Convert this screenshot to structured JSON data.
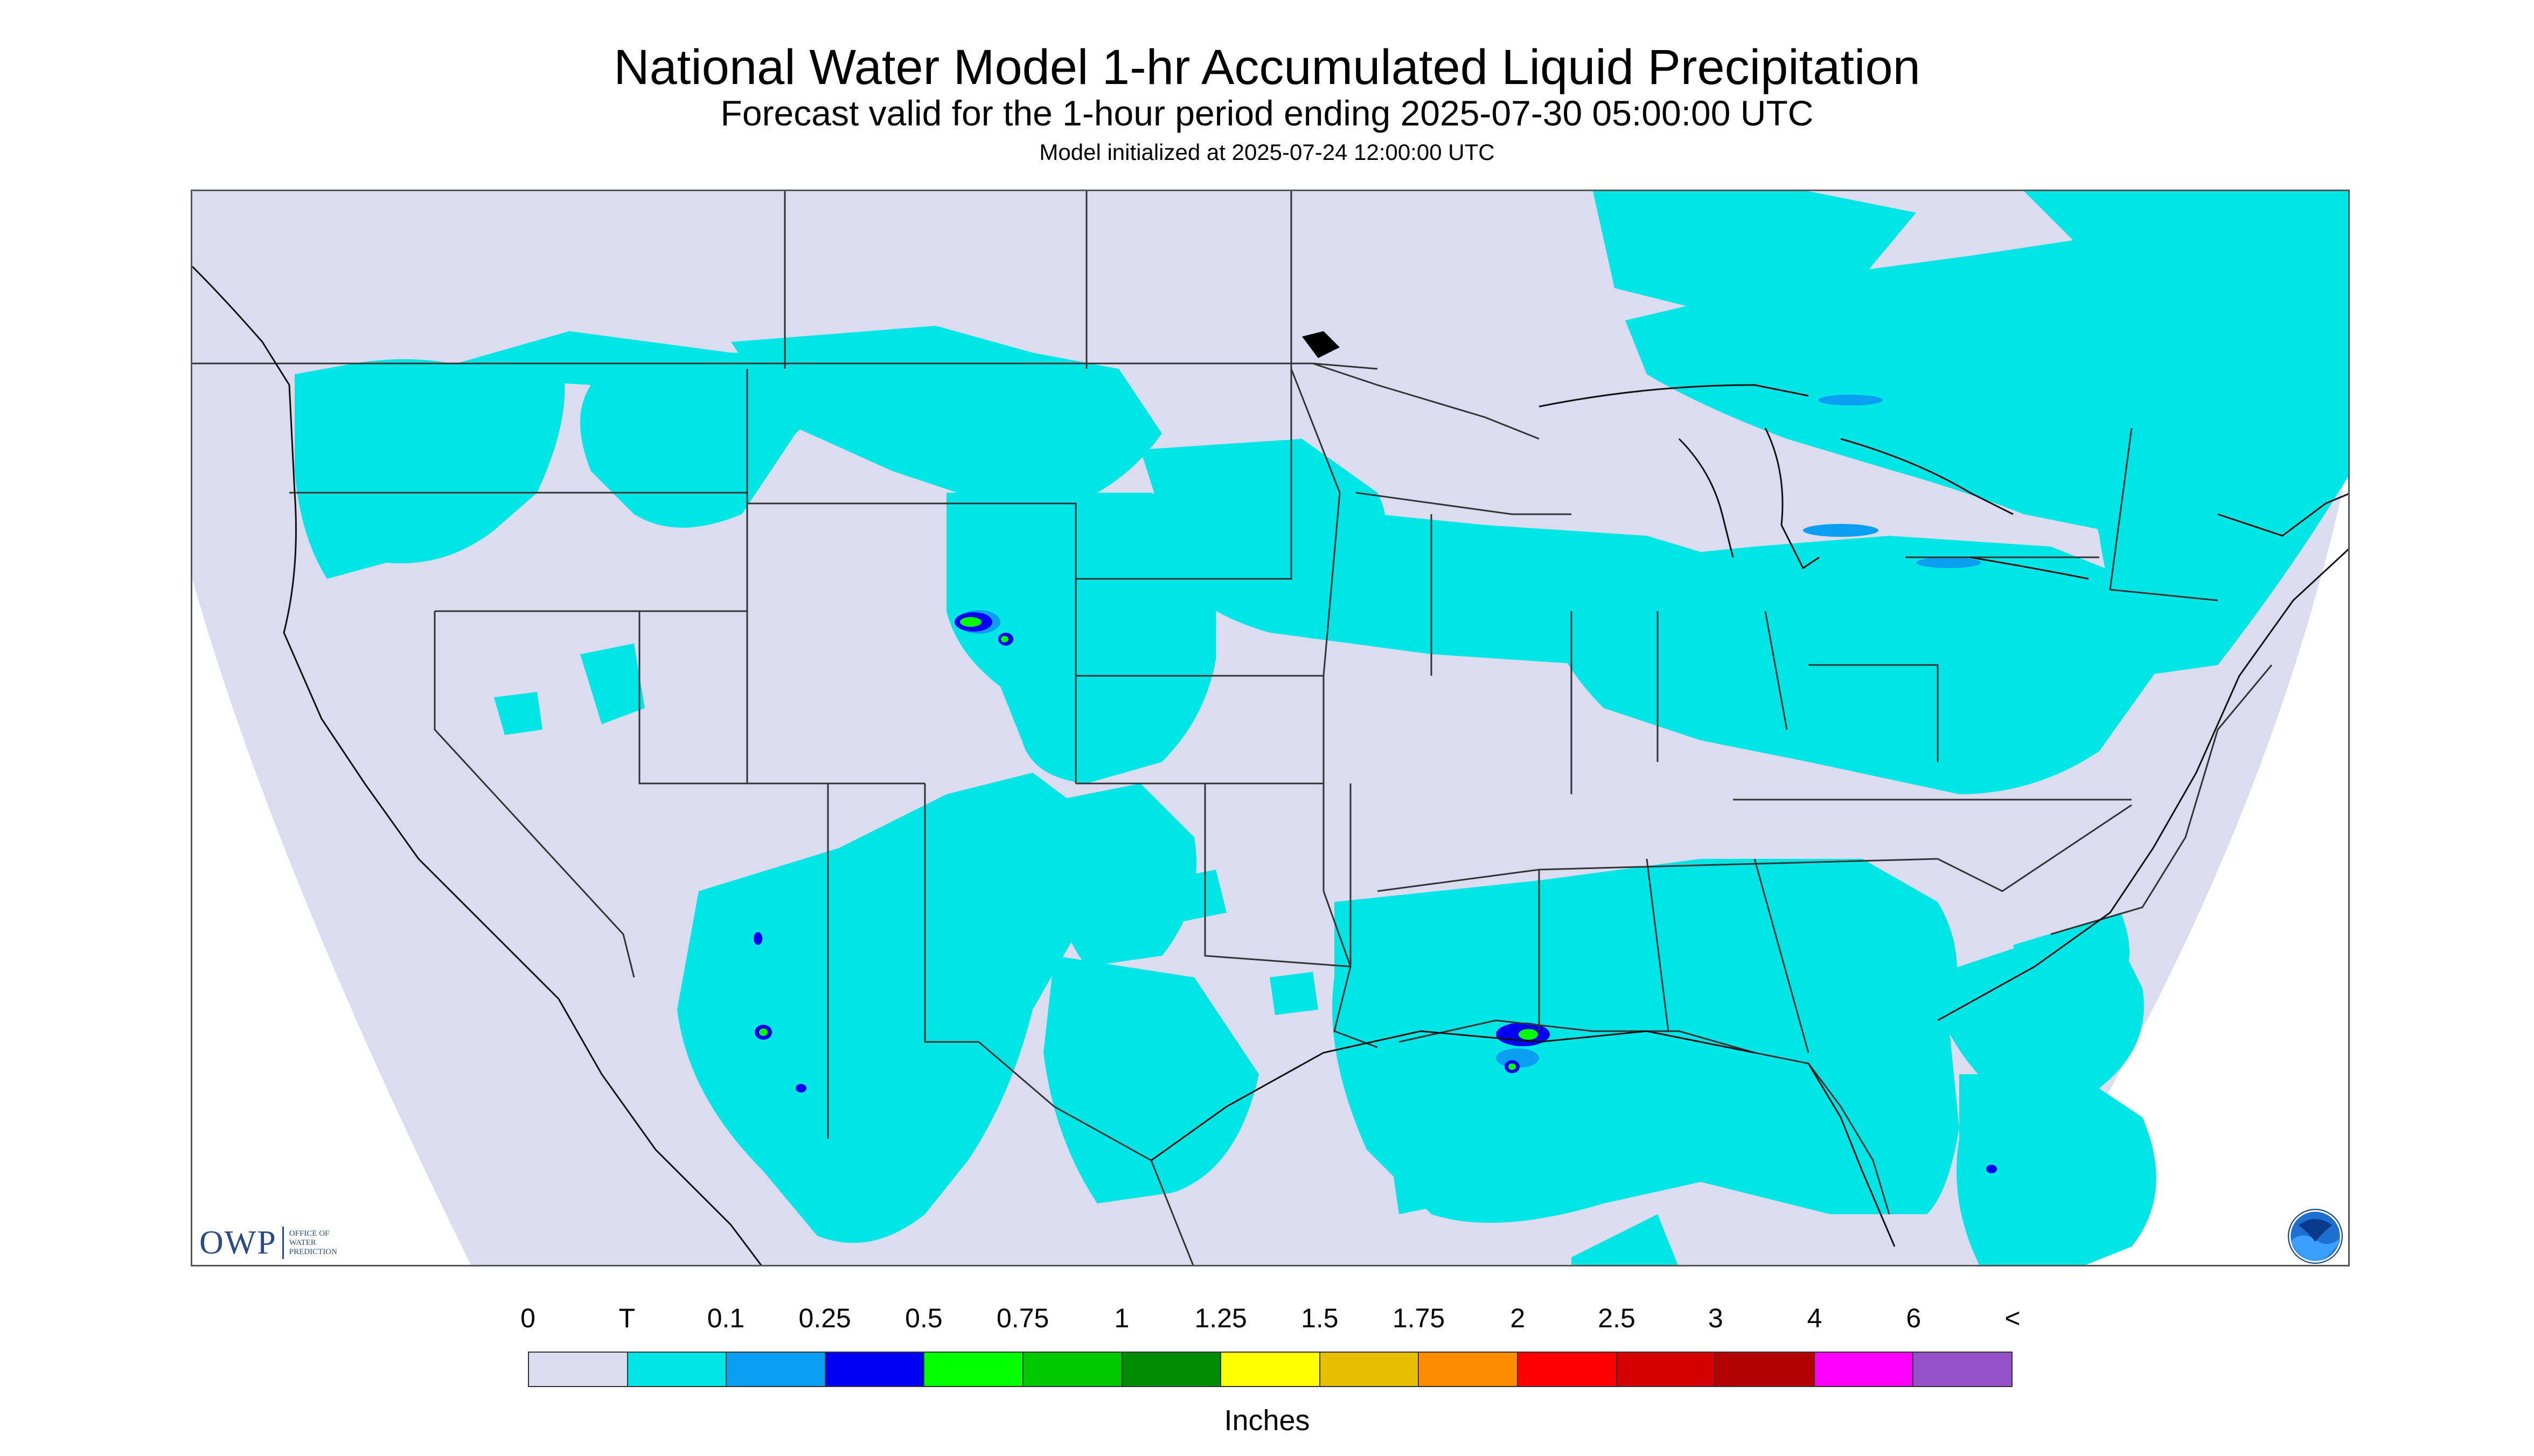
{
  "header": {
    "title": "National Water Model 1-hr Accumulated Liquid Precipitation",
    "subtitle": "Forecast valid for the 1-hour period ending 2025-07-30 05:00:00 UTC",
    "init": "Model initialized at 2025-07-24 12:00:00 UTC"
  },
  "colors": {
    "background": "#dcdcf0",
    "trace": "#00e5e5",
    "light_blue": "#0a9ff0",
    "blue": "#0000f5",
    "lime": "#00ff00",
    "green": "#00c800",
    "dark_green": "#008c00"
  },
  "logos": {
    "owp_text": "OWP",
    "owp_subtext": [
      "OFFICE OF",
      "WATER",
      "PREDICTION"
    ]
  },
  "legend": {
    "labels": [
      "0",
      "T",
      "0.1",
      "0.25",
      "0.5",
      "0.75",
      "1",
      "1.25",
      "1.5",
      "1.75",
      "2",
      "2.5",
      "3",
      "4",
      "6",
      "<"
    ],
    "colors": [
      "#dcdcf0",
      "#00e5e5",
      "#0a9ff0",
      "#0000f5",
      "#00ff00",
      "#00c800",
      "#008c00",
      "#ffff00",
      "#e6c000",
      "#ff8c00",
      "#ff0000",
      "#d20000",
      "#b40000",
      "#ff00ff",
      "#9650c8"
    ],
    "unit": "Inches"
  }
}
